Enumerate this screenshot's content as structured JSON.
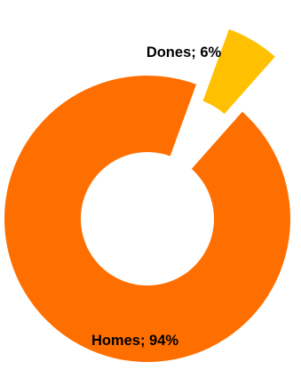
{
  "chart_data": {
    "type": "pie",
    "variant": "doughnut",
    "title": "",
    "exploded": true,
    "slices": [
      {
        "name": "Homes",
        "value": 94,
        "color": "#FF6F00",
        "label": "Homes; 94%"
      },
      {
        "name": "Dones",
        "value": 6,
        "color": "#FFC000",
        "label": "Dones; 6%"
      }
    ]
  }
}
